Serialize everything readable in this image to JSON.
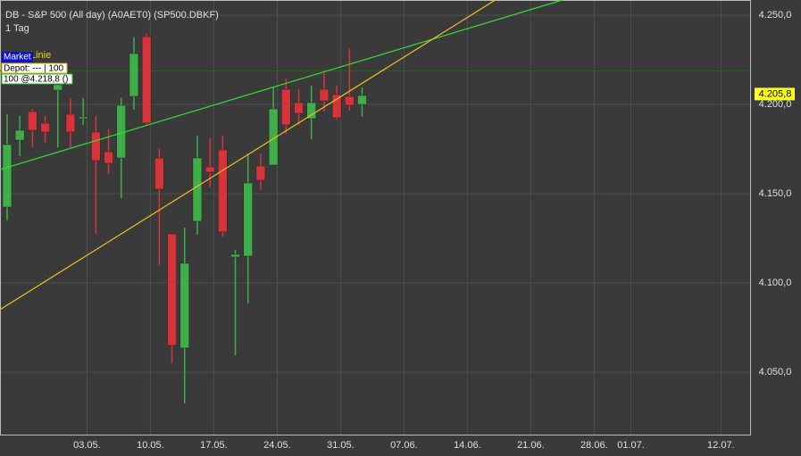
{
  "chart_data": {
    "type": "candlestick",
    "title": "DB - S&P 500 (All day) (A0AET0) (SP500.DBKF)",
    "subtitle": "1 Tag",
    "x": [
      0,
      1,
      2,
      3,
      4,
      5,
      6,
      7,
      8,
      9,
      10,
      11,
      12,
      13,
      14,
      15,
      16,
      17,
      18,
      19,
      20,
      21,
      22,
      23,
      24,
      25,
      26,
      27,
      28
    ],
    "open": [
      4142.5,
      4180,
      4196,
      4189.5,
      4208,
      4194.5,
      4192,
      4184.5,
      4173.5,
      4170,
      4204.5,
      4238,
      4170,
      4127.5,
      4063.5,
      4134.5,
      4165,
      4174.5,
      4114.5,
      4115,
      4165.5,
      4166,
      4208.5,
      4201,
      4192,
      4208.5,
      4205.5,
      4204.5,
      4200
    ],
    "high": [
      4194.5,
      4193.5,
      4197.5,
      4193.5,
      4217.5,
      4203.5,
      4203.5,
      4193.5,
      4186,
      4203.5,
      4237.5,
      4239.5,
      4175,
      4127.5,
      4131,
      4182.5,
      4181,
      4182.5,
      4118.5,
      4172.5,
      4172.5,
      4209.5,
      4214.5,
      4208.5,
      4210.5,
      4217.5,
      4210.5,
      4231,
      4209.5
    ],
    "low": [
      4135,
      4171,
      4176,
      4178.5,
      4176,
      4176,
      4188.5,
      4127.5,
      4161,
      4147.5,
      4197,
      4188.5,
      4110,
      4055,
      4032.5,
      4127,
      4153.5,
      4126,
      4059.5,
      4088.5,
      4152,
      4166,
      4183.5,
      4188.5,
      4180.5,
      4196,
      4191.5,
      4196.5,
      4193
    ],
    "close": [
      4177.5,
      4185.5,
      4185.5,
      4184.5,
      4211,
      4184.5,
      4193,
      4168.5,
      4167,
      4199.5,
      4228.5,
      4189.5,
      4152.5,
      4065,
      4111,
      4170,
      4162,
      4128.5,
      4116,
      4156,
      4157.5,
      4197.5,
      4188.5,
      4195,
      4201,
      4202,
      4192.5,
      4199.5,
      4205
    ],
    "up_color": "#3fae49",
    "down_color": "#d6333a",
    "xlim": [
      -0.56,
      58.6
    ],
    "xticks": [
      {
        "value": 6.3,
        "label": "03.05."
      },
      {
        "value": 11.3,
        "label": "10.05."
      },
      {
        "value": 16.3,
        "label": "17.05."
      },
      {
        "value": 21.3,
        "label": "24.05."
      },
      {
        "value": 26.3,
        "label": "31.05."
      },
      {
        "value": 31.3,
        "label": "07.06."
      },
      {
        "value": 36.3,
        "label": "14.06."
      },
      {
        "value": 41.3,
        "label": "21.06."
      },
      {
        "value": 46.3,
        "label": "28.06."
      },
      {
        "value": 49.2,
        "label": "01.07."
      },
      {
        "value": 56.3,
        "label": "12.07."
      }
    ],
    "ylim": [
      4015,
      4258.5
    ],
    "yticks": [
      {
        "value": 4050,
        "label": "4.050,0"
      },
      {
        "value": 4100,
        "label": "4.100,0"
      },
      {
        "value": 4150,
        "label": "4.150,0"
      },
      {
        "value": 4200,
        "label": "4.200,0"
      },
      {
        "value": 4250,
        "label": "4.250,0"
      }
    ],
    "grid": true,
    "trendlines": [
      {
        "color": "#33dd33",
        "x": [
          -0.56,
          43.8
        ],
        "y": [
          4163.5,
          4258.5
        ]
      },
      {
        "color": "#f0c020",
        "x": [
          -0.56,
          38.5
        ],
        "y": [
          4085,
          4258.5
        ]
      }
    ],
    "position_line": {
      "value": 4218.8,
      "color": "#1e6a1e"
    },
    "last_price": {
      "value": 4205.8,
      "label": "4.205,8"
    },
    "overlay": {
      "line_name": "Linie",
      "market": "Market",
      "depot": "Depot: --- | 100",
      "order": "100 @4.218,8 ()"
    }
  }
}
